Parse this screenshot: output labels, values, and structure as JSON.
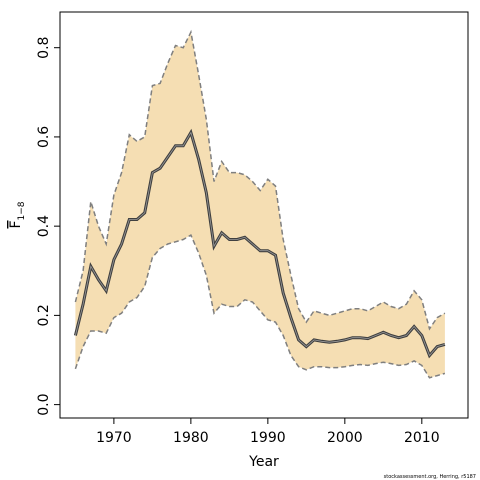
{
  "chart_data": {
    "type": "line",
    "title": "",
    "xlabel": "Year",
    "ylabel": {
      "main": "F",
      "subscript": "1−8"
    },
    "xlim": [
      1963,
      2016
    ],
    "ylim": [
      -0.03,
      0.88
    ],
    "x_ticks": [
      1970,
      1980,
      1990,
      2000,
      2010
    ],
    "y_ticks": [
      0.0,
      0.2,
      0.4,
      0.6,
      0.8
    ],
    "x_tick_labels": [
      "1970",
      "1980",
      "1990",
      "2000",
      "2010"
    ],
    "y_tick_labels": [
      "0.0",
      "0.2",
      "0.4",
      "0.6",
      "0.8"
    ],
    "grid": false,
    "legend": "none",
    "colors": {
      "band": "#f5deb3",
      "line": "#404040",
      "bounds": "#7f7f7f"
    },
    "x": [
      1965,
      1966,
      1967,
      1968,
      1969,
      1970,
      1971,
      1972,
      1973,
      1974,
      1975,
      1976,
      1977,
      1978,
      1979,
      1980,
      1981,
      1982,
      1983,
      1984,
      1985,
      1986,
      1987,
      1988,
      1989,
      1990,
      1991,
      1992,
      1993,
      1994,
      1995,
      1996,
      1997,
      1998,
      1999,
      2000,
      2001,
      2002,
      2003,
      2004,
      2005,
      2006,
      2007,
      2008,
      2009,
      2010,
      2011,
      2012,
      2013
    ],
    "series": [
      {
        "role": "estimate",
        "values": [
          0.155,
          0.225,
          0.31,
          0.28,
          0.255,
          0.325,
          0.36,
          0.415,
          0.415,
          0.43,
          0.52,
          0.53,
          0.555,
          0.58,
          0.58,
          0.61,
          0.55,
          0.475,
          0.355,
          0.385,
          0.37,
          0.37,
          0.375,
          0.36,
          0.345,
          0.345,
          0.335,
          0.25,
          0.195,
          0.145,
          0.13,
          0.145,
          0.142,
          0.14,
          0.142,
          0.145,
          0.15,
          0.15,
          0.148,
          0.155,
          0.162,
          0.155,
          0.15,
          0.155,
          0.175,
          0.155,
          0.11,
          0.13,
          0.135
        ]
      },
      {
        "role": "upper",
        "values": [
          0.23,
          0.3,
          0.455,
          0.4,
          0.36,
          0.47,
          0.52,
          0.605,
          0.59,
          0.6,
          0.715,
          0.72,
          0.765,
          0.805,
          0.8,
          0.835,
          0.74,
          0.64,
          0.5,
          0.545,
          0.52,
          0.52,
          0.515,
          0.5,
          0.48,
          0.505,
          0.49,
          0.37,
          0.29,
          0.215,
          0.185,
          0.21,
          0.205,
          0.2,
          0.205,
          0.21,
          0.215,
          0.215,
          0.21,
          0.22,
          0.23,
          0.22,
          0.215,
          0.225,
          0.255,
          0.235,
          0.17,
          0.195,
          0.205
        ]
      },
      {
        "role": "lower",
        "values": [
          0.08,
          0.13,
          0.165,
          0.165,
          0.16,
          0.195,
          0.205,
          0.23,
          0.24,
          0.265,
          0.33,
          0.35,
          0.36,
          0.365,
          0.37,
          0.38,
          0.34,
          0.29,
          0.205,
          0.225,
          0.22,
          0.22,
          0.235,
          0.23,
          0.21,
          0.19,
          0.185,
          0.155,
          0.11,
          0.085,
          0.078,
          0.085,
          0.085,
          0.083,
          0.083,
          0.085,
          0.088,
          0.09,
          0.088,
          0.092,
          0.095,
          0.092,
          0.088,
          0.09,
          0.098,
          0.088,
          0.06,
          0.065,
          0.07
        ]
      }
    ]
  },
  "credit": "stockassessment.org, Herring, r5187"
}
